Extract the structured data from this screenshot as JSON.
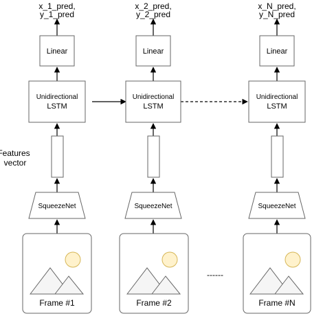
{
  "columns": [
    {
      "output": [
        "x_1_pred,",
        "y_1_pred"
      ],
      "linear": "Linear",
      "lstm": [
        "Unidirectional",
        "LSTM"
      ],
      "cnn": "SqueezeNet",
      "frame": "Frame #1"
    },
    {
      "output": [
        "x_2_pred,",
        "y_2_pred"
      ],
      "linear": "Linear",
      "lstm": [
        "Unidirectional",
        "LSTM"
      ],
      "cnn": "SqueezeNet",
      "frame": "Frame #2"
    },
    {
      "output": [
        "x_N_pred,",
        "y_N_pred"
      ],
      "linear": "Linear",
      "lstm": [
        "Unidirectional",
        "LSTM"
      ],
      "cnn": "SqueezeNet",
      "frame": "Frame #N"
    }
  ],
  "features_label": [
    "Features",
    "vector"
  ],
  "ellipsis": "------",
  "colors": {
    "stroke": "#000000",
    "box_stroke": "#666666",
    "sun_fill": "#fff2cc",
    "sun_stroke": "#d6b656",
    "mountain_fill": "#f5f5f5",
    "mountain_stroke": "#666666"
  }
}
